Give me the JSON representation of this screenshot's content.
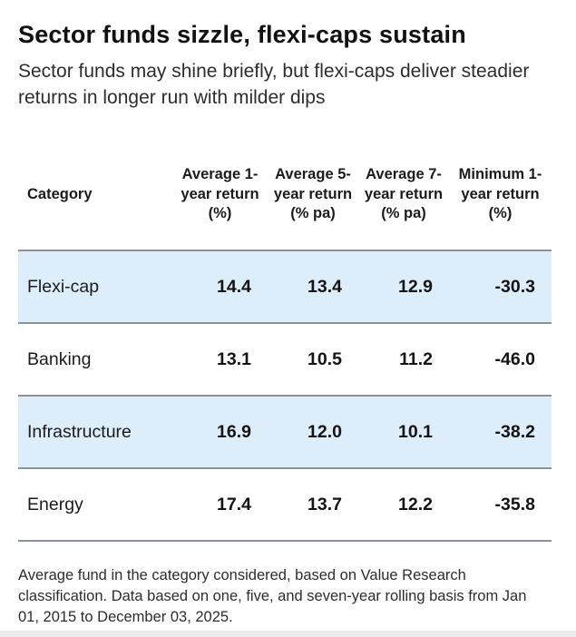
{
  "title": "Sector funds sizzle, flexi-caps sustain",
  "subtitle": "Sector funds may shine briefly, but flexi-caps deliver steadier returns in longer run with milder dips",
  "footnote": "Average fund in the category considered, based on Value Research classification. Data based on one, five, and seven-year rolling basis from Jan 01, 2015 to December 03, 2025.",
  "colors": {
    "highlight_row_bg": "#ddedf9",
    "row_border": "#8b949c",
    "text": "#1b1b1b"
  },
  "chart_data": {
    "type": "table",
    "title": "Sector funds sizzle, flexi-caps sustain",
    "subtitle": "Sector funds may shine briefly, but flexi-caps deliver steadier returns in longer run with milder dips",
    "columns": [
      "Category",
      "Average 1-year return (%)",
      "Average 5-year return (% pa)",
      "Average 7-year return (% pa)",
      "Minimum 1-year return (%)"
    ],
    "rows": [
      {
        "category": "Flexi-cap",
        "avg_1y_return": 14.4,
        "avg_5y_return": 13.4,
        "avg_7y_return": 12.9,
        "min_1y_return": -30.3,
        "highlighted": true
      },
      {
        "category": "Banking",
        "avg_1y_return": 13.1,
        "avg_5y_return": 10.5,
        "avg_7y_return": 11.2,
        "min_1y_return": -46.0,
        "highlighted": false
      },
      {
        "category": "Infrastructure",
        "avg_1y_return": 16.9,
        "avg_5y_return": 12.0,
        "avg_7y_return": 10.1,
        "min_1y_return": -38.2,
        "highlighted": true
      },
      {
        "category": "Energy",
        "avg_1y_return": 17.4,
        "avg_5y_return": 13.7,
        "avg_7y_return": 12.2,
        "min_1y_return": -35.8,
        "highlighted": false
      }
    ],
    "cell_text": [
      [
        "Flexi-cap",
        "14.4",
        "13.4",
        "12.9",
        "-30.3"
      ],
      [
        "Banking",
        "13.1",
        "10.5",
        "11.2",
        "-46.0"
      ],
      [
        "Infrastructure",
        "16.9",
        "12.0",
        "10.1",
        "-38.2"
      ],
      [
        "Energy",
        "17.4",
        "13.7",
        "12.2",
        "-35.8"
      ]
    ],
    "footnote": "Average fund in the category considered, based on Value Research classification. Data based on one, five, and seven-year rolling basis from Jan 01, 2015 to December 03, 2025."
  }
}
